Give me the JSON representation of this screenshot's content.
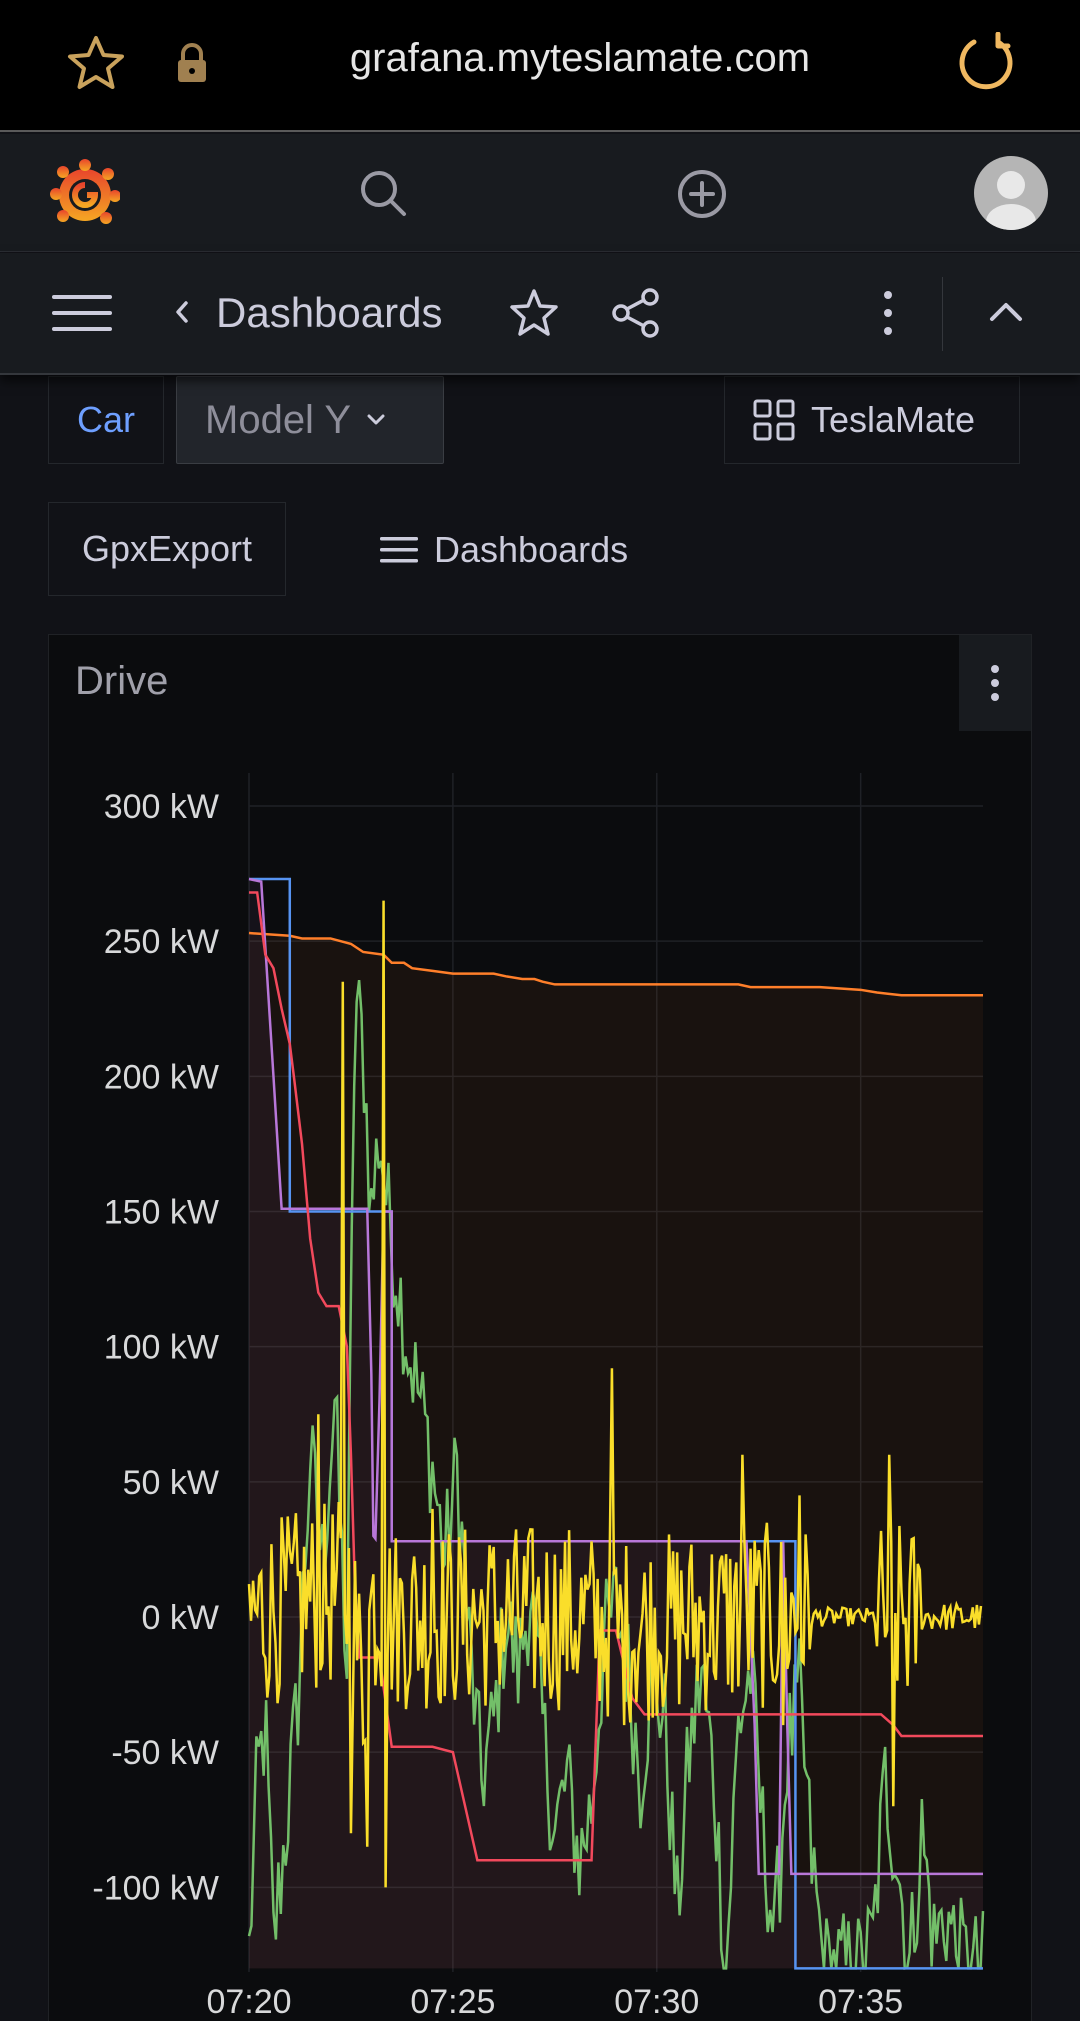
{
  "browser": {
    "url": "grafana.myteslamate.com",
    "icons": [
      "star-icon",
      "lock-icon",
      "reload-icon"
    ]
  },
  "topnav": {
    "icons": [
      "grafana-logo-icon",
      "search-icon",
      "add-icon",
      "avatar"
    ]
  },
  "breadcrumb": {
    "label": "Dashboards"
  },
  "variables": {
    "car_label": "Car",
    "car_value": "Model Y"
  },
  "links": {
    "teslamate": "TeslaMate",
    "gpx_export": "GpxExport",
    "dashboards": "Dashboards"
  },
  "panel": {
    "title": "Drive"
  },
  "colors": {
    "orange": "#ff7f2a",
    "yellow": "#fade2a",
    "green": "#73bf69",
    "red": "#f2495c",
    "purple": "#b877d9",
    "blue": "#5794f2"
  },
  "chart_data": {
    "type": "line",
    "title": "",
    "xlabel": "",
    "ylabel": "",
    "x_ticks": [
      "07:20",
      "07:25",
      "07:30",
      "07:35"
    ],
    "y_ticks": [
      "300 kW",
      "250 kW",
      "200 kW",
      "150 kW",
      "100 kW",
      "50 kW",
      "0 kW",
      "-50 kW",
      "-100 kW"
    ],
    "ylim": [
      -130,
      305
    ],
    "xlim": [
      0,
      18
    ],
    "grid": true,
    "legend": "none",
    "series": [
      {
        "color": "#ff7f2a",
        "fill": true,
        "points": [
          [
            0,
            253
          ],
          [
            1,
            252
          ],
          [
            1.3,
            251
          ],
          [
            2,
            251
          ],
          [
            2.5,
            249
          ],
          [
            2.8,
            246
          ],
          [
            3.3,
            245
          ],
          [
            3.5,
            242
          ],
          [
            3.8,
            242
          ],
          [
            4,
            240
          ],
          [
            4.5,
            239
          ],
          [
            5,
            238
          ],
          [
            6,
            238
          ],
          [
            6.3,
            237
          ],
          [
            6.7,
            236
          ],
          [
            7,
            236
          ],
          [
            7.2,
            235
          ],
          [
            7.5,
            234
          ],
          [
            8,
            234
          ],
          [
            10,
            234
          ],
          [
            12,
            234
          ],
          [
            12.3,
            233
          ],
          [
            14,
            233
          ],
          [
            15,
            232
          ],
          [
            15.4,
            231
          ],
          [
            16,
            230
          ],
          [
            18,
            230
          ]
        ]
      },
      {
        "color": "#5794f2",
        "points": [
          [
            0,
            273
          ],
          [
            1,
            273
          ],
          [
            1,
            150
          ],
          [
            3.5,
            150
          ],
          [
            3.5,
            28
          ],
          [
            13.4,
            28
          ],
          [
            13.4,
            -130
          ],
          [
            18,
            -130
          ]
        ]
      },
      {
        "color": "#b877d9",
        "fill": true,
        "points": [
          [
            0,
            273
          ],
          [
            0.3,
            272
          ],
          [
            0.6,
            200
          ],
          [
            0.8,
            151
          ],
          [
            2.9,
            151
          ],
          [
            3.0,
            90
          ],
          [
            3.05,
            30
          ],
          [
            3.1,
            29
          ],
          [
            3.2,
            80
          ],
          [
            3.3,
            150
          ],
          [
            3.5,
            150
          ],
          [
            3.5,
            28
          ],
          [
            12.2,
            28
          ],
          [
            12.4,
            -40
          ],
          [
            12.5,
            -95
          ],
          [
            13.0,
            -95
          ],
          [
            13.1,
            28
          ],
          [
            13.2,
            -40
          ],
          [
            13.3,
            -95
          ],
          [
            18,
            -95
          ]
        ]
      },
      {
        "color": "#f2495c",
        "points": [
          [
            0,
            268
          ],
          [
            0.2,
            268
          ],
          [
            0.4,
            245
          ],
          [
            0.6,
            240
          ],
          [
            0.8,
            225
          ],
          [
            1,
            212
          ],
          [
            1.1,
            200
          ],
          [
            1.3,
            175
          ],
          [
            1.5,
            140
          ],
          [
            1.7,
            120
          ],
          [
            1.9,
            115
          ],
          [
            2.2,
            115
          ],
          [
            2.4,
            100
          ],
          [
            2.5,
            60
          ],
          [
            2.6,
            10
          ],
          [
            2.7,
            -15
          ],
          [
            3.2,
            -15
          ],
          [
            3.5,
            -48
          ],
          [
            4.5,
            -48
          ],
          [
            5,
            -50
          ],
          [
            5.3,
            -70
          ],
          [
            5.6,
            -90
          ],
          [
            8.4,
            -90
          ],
          [
            8.6,
            -5
          ],
          [
            9,
            -5
          ],
          [
            9.4,
            -30
          ],
          [
            9.7,
            -36
          ],
          [
            12,
            -36
          ],
          [
            15.5,
            -36
          ],
          [
            15.8,
            -40
          ],
          [
            16,
            -44
          ],
          [
            18,
            -44
          ]
        ]
      }
    ],
    "noisy_series": [
      {
        "color": "#73bf69",
        "description": "noisy series swinging between about -130 and 240 kW"
      },
      {
        "color": "#fade2a",
        "description": "noisy series oscillating around 0 kW with spikes up to about 265 kW"
      }
    ]
  }
}
